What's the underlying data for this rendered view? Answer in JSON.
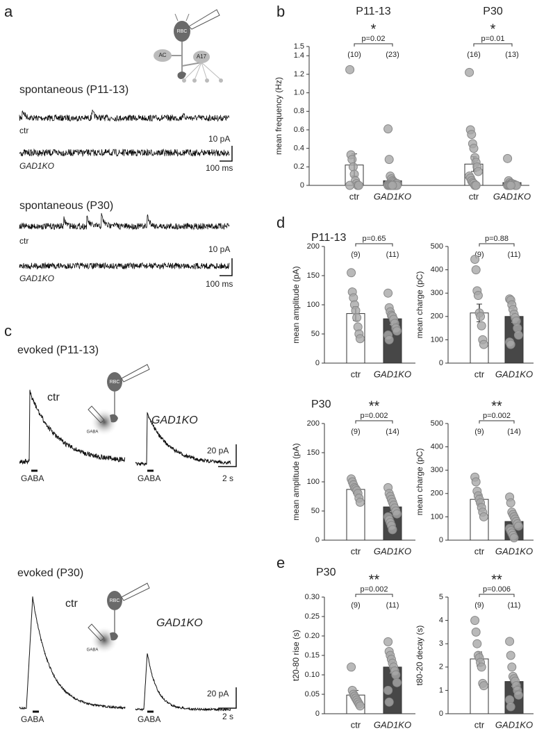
{
  "panel_labels": [
    "a",
    "b",
    "c",
    "d",
    "e"
  ],
  "traces": {
    "spont_p11": "spontaneous (P11-13)",
    "spont_p30": "spontaneous (P30)",
    "evoked_p11": "evoked (P11-13)",
    "evoked_p30": "evoked (P30)",
    "ctr": "ctr",
    "ko": "GAD1KO",
    "scale_10pA": "10 pA",
    "scale_100ms": "100 ms",
    "scale_20pA": "20 pA",
    "scale_2s": "2 s",
    "gaba": "GABA"
  },
  "diagram_labels": {
    "rbc": "RBC",
    "ac": "AC",
    "a17": "A17"
  },
  "chart_data": [
    {
      "type": "bar",
      "ylabel": "mean frequency (Hz)",
      "ylim": [
        0,
        1.5
      ],
      "yticks": [
        0,
        0.2,
        0.4,
        0.6,
        0.8,
        {
          "value": 1,
          "label": "1.0"
        },
        1.2,
        1.4,
        1.5
      ],
      "colors": [
        "#ffffff",
        "#474747"
      ],
      "groups": [
        {
          "title": "P11-13",
          "categories": [
            "ctr",
            "GAD1KO"
          ],
          "values": [
            0.22,
            0.05
          ],
          "errors": [
            0.12,
            0.03
          ],
          "n_labels": [
            "(10)",
            "(23)"
          ],
          "p_label": "p=0.02",
          "sig": "*",
          "points": [
            [
              1.25,
              0.33,
              0.28,
              0.2,
              0.12,
              0.05,
              0.02,
              0,
              0,
              0
            ],
            [
              0.61,
              0.28,
              0.1,
              0.07,
              0.05,
              0.04,
              0.03,
              0.02,
              0.02,
              0.01,
              0.01,
              0,
              0,
              0,
              0,
              0,
              0,
              0,
              0,
              0,
              0,
              0,
              0
            ]
          ]
        },
        {
          "title": "P30",
          "categories": [
            "ctr",
            "GAD1KO"
          ],
          "values": [
            0.23,
            0.03
          ],
          "errors": [
            0.08,
            0.02
          ],
          "n_labels": [
            "(16)",
            "(13)"
          ],
          "p_label": "p=0.01",
          "sig": "*",
          "points": [
            [
              1.22,
              0.6,
              0.55,
              0.45,
              0.4,
              0.3,
              0.25,
              0.2,
              0.15,
              0.1,
              0.08,
              0.05,
              0.03,
              0.02,
              0,
              0
            ],
            [
              0.29,
              0.05,
              0.03,
              0.02,
              0.02,
              0.01,
              0.01,
              0,
              0,
              0,
              0,
              0,
              0
            ]
          ]
        }
      ]
    },
    {
      "type": "bar",
      "title": "P11-13",
      "ylabel": "mean amplitude (pA)",
      "ylim": [
        0,
        200
      ],
      "yticks": [
        0,
        50,
        100,
        150,
        200
      ],
      "colors": [
        "#ffffff",
        "#474747"
      ],
      "groups": [
        {
          "categories": [
            "ctr",
            "GAD1KO"
          ],
          "values": [
            85,
            76
          ],
          "errors": [
            12,
            10
          ],
          "n_labels": [
            "(9)",
            "(11)"
          ],
          "p_label": "p=0.65",
          "points": [
            [
              155,
              122,
              112,
              100,
              90,
              78,
              62,
              50,
              42
            ],
            [
              120,
              95,
              88,
              82,
              80,
              75,
              68,
              60,
              55,
              48,
              40
            ]
          ]
        }
      ]
    },
    {
      "type": "bar",
      "ylabel": "mean charge (pC)",
      "ylim": [
        0,
        500
      ],
      "yticks": [
        0,
        100,
        200,
        300,
        400,
        500
      ],
      "colors": [
        "#ffffff",
        "#474747"
      ],
      "groups": [
        {
          "categories": [
            "ctr",
            "GAD1KO"
          ],
          "values": [
            215,
            200
          ],
          "errors": [
            38,
            25
          ],
          "n_labels": [
            "(9)",
            "(11)"
          ],
          "p_label": "p=0.88",
          "points": [
            [
              445,
              400,
              310,
              290,
              215,
              200,
              160,
              100,
              80
            ],
            [
              275,
              270,
              250,
              230,
              210,
              195,
              180,
              150,
              120,
              90,
              80
            ]
          ]
        }
      ]
    },
    {
      "type": "bar",
      "title": "P30",
      "ylabel": "mean amplitude (pA)",
      "ylim": [
        0,
        200
      ],
      "yticks": [
        0,
        50,
        100,
        150,
        200
      ],
      "colors": [
        "#ffffff",
        "#474747"
      ],
      "groups": [
        {
          "categories": [
            "ctr",
            "GAD1KO"
          ],
          "values": [
            87,
            57
          ],
          "errors": [
            7,
            8
          ],
          "n_labels": [
            "(9)",
            "(14)"
          ],
          "p_label": "p=0.002",
          "sig": "**",
          "points": [
            [
              105,
              100,
              95,
              90,
              88,
              85,
              80,
              72,
              65
            ],
            [
              90,
              80,
              75,
              70,
              65,
              60,
              55,
              50,
              45,
              40,
              35,
              30,
              25,
              18
            ]
          ]
        }
      ]
    },
    {
      "type": "bar",
      "ylabel": "mean charge (pC)",
      "ylim": [
        0,
        500
      ],
      "yticks": [
        0,
        100,
        200,
        300,
        400,
        500
      ],
      "colors": [
        "#ffffff",
        "#474747"
      ],
      "groups": [
        {
          "categories": [
            "ctr",
            "GAD1KO"
          ],
          "values": [
            175,
            80
          ],
          "errors": [
            20,
            15
          ],
          "n_labels": [
            "(9)",
            "(14)"
          ],
          "p_label": "p=0.002",
          "sig": "**",
          "points": [
            [
              270,
              250,
              210,
              190,
              175,
              160,
              140,
              120,
              100
            ],
            [
              185,
              160,
              120,
              110,
              100,
              90,
              80,
              70,
              60,
              50,
              40,
              30,
              20,
              10
            ]
          ]
        }
      ]
    },
    {
      "type": "bar",
      "title": "P30",
      "ylabel": "t20-80 rise (s)",
      "ylim": [
        0,
        0.3
      ],
      "yticks": [
        0,
        0.05,
        {
          "value": 0.1,
          "label": "0.10"
        },
        0.15,
        {
          "value": 0.2,
          "label": "0.20"
        },
        0.25,
        {
          "value": 0.3,
          "label": "0.30"
        }
      ],
      "colors": [
        "#ffffff",
        "#474747"
      ],
      "groups": [
        {
          "categories": [
            "ctr",
            "GAD1KO"
          ],
          "values": [
            0.048,
            0.12
          ],
          "errors": [
            0.012,
            0.015
          ],
          "n_labels": [
            "(9)",
            "(11)"
          ],
          "p_label": "p=0.002",
          "sig": "**",
          "points": [
            [
              0.12,
              0.06,
              0.05,
              0.045,
              0.04,
              0.035,
              0.03,
              0.025,
              0.02
            ],
            [
              0.185,
              0.16,
              0.15,
              0.14,
              0.13,
              0.12,
              0.11,
              0.1,
              0.08,
              0.06,
              0.03
            ]
          ]
        }
      ]
    },
    {
      "type": "bar",
      "ylabel": "t80-20 decay (s)",
      "ylim": [
        0,
        5
      ],
      "yticks": [
        0,
        1,
        2,
        3,
        4,
        5
      ],
      "colors": [
        "#ffffff",
        "#474747"
      ],
      "groups": [
        {
          "categories": [
            "ctr",
            "GAD1KO"
          ],
          "values": [
            2.35,
            1.38
          ],
          "errors": [
            0.3,
            0.2
          ],
          "n_labels": [
            "(9)",
            "(11)"
          ],
          "p_label": "p=0.006",
          "sig": "**",
          "points": [
            [
              4,
              3.5,
              3,
              2.5,
              2.4,
              2.2,
              2,
              1.3,
              1.2
            ],
            [
              3.1,
              2.5,
              2,
              1.6,
              1.5,
              1.4,
              1.2,
              1,
              0.8,
              0.6,
              0.3
            ]
          ]
        }
      ]
    }
  ]
}
